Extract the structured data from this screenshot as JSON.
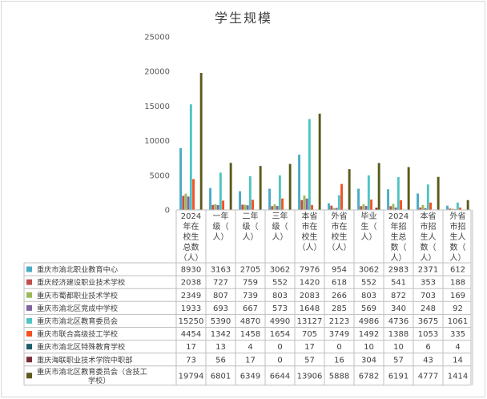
{
  "chart_data": {
    "type": "bar",
    "title": "学生规模",
    "categories": [
      "2024年在校生总数（人）",
      "一年级（人）",
      "二年级（人）",
      "三年级（人）",
      "本省市在校生（人）",
      "外省市在校生（人）",
      "毕业生（人）",
      "2024年招生总数（人）",
      "本省市招生人数（人）",
      "外省市招生人数（人）"
    ],
    "category_lines": [
      [
        "2024",
        "年在",
        "校生",
        "总数",
        "（人）"
      ],
      [
        "一年",
        "级（",
        "人）"
      ],
      [
        "二年",
        "级（",
        "人）"
      ],
      [
        "三年",
        "级（",
        "人）"
      ],
      [
        "本省",
        "市在",
        "校生",
        "（人）"
      ],
      [
        "外省",
        "市在",
        "校生",
        "（人）"
      ],
      [
        "毕业",
        "生（",
        "人）"
      ],
      [
        "2024",
        "年招",
        "生总",
        "数（",
        "人）"
      ],
      [
        "本省",
        "市招",
        "生人",
        "数（",
        "人）"
      ],
      [
        "外省",
        "市招",
        "生人",
        "数（",
        "人）"
      ]
    ],
    "ylim": [
      0,
      25000
    ],
    "yticks": [
      0,
      5000,
      10000,
      15000,
      20000,
      25000
    ],
    "grid": false,
    "legend": "data-table",
    "series": [
      {
        "name": "重庆市渝北职业教育中心",
        "color": "#4bacc6",
        "values": [
          8930,
          3163,
          2705,
          3062,
          7976,
          954,
          3062,
          2983,
          2371,
          612
        ]
      },
      {
        "name": "重庆经济建设职业技术学校",
        "color": "#c0504d",
        "values": [
          2038,
          727,
          759,
          552,
          1420,
          618,
          552,
          541,
          353,
          188
        ]
      },
      {
        "name": "重庆市蜀都职业技术学校",
        "color": "#9bbb59",
        "values": [
          2349,
          807,
          739,
          803,
          2083,
          266,
          803,
          872,
          703,
          169
        ]
      },
      {
        "name": "重庆市渝北区竞成中学校",
        "color": "#8064a2",
        "values": [
          1933,
          693,
          667,
          573,
          1648,
          285,
          569,
          340,
          248,
          92
        ]
      },
      {
        "name": "重庆市渝北区教育委员会",
        "color": "#4fc4c4",
        "values": [
          15250,
          5390,
          4870,
          4990,
          13127,
          2123,
          4986,
          4736,
          3675,
          1061
        ]
      },
      {
        "name": "重庆市联合高级技工学校",
        "color": "#f6511d",
        "values": [
          4454,
          1342,
          1458,
          1654,
          705,
          3749,
          1492,
          1388,
          1053,
          335
        ]
      },
      {
        "name": "重庆市渝北区特殊教育学校",
        "color": "#1f5c6b",
        "values": [
          17,
          13,
          4,
          0,
          17,
          0,
          10,
          10,
          6,
          4
        ]
      },
      {
        "name": "重庆海联职业技术学院中职部",
        "color": "#7b2d35",
        "values": [
          73,
          56,
          17,
          0,
          57,
          16,
          304,
          57,
          43,
          14
        ]
      },
      {
        "name": "重庆市渝北区教育委员会（含技工学校）",
        "color": "#5a5a1c",
        "values": [
          19794,
          6801,
          6349,
          6644,
          13906,
          5888,
          6782,
          6191,
          4777,
          1414
        ]
      }
    ]
  }
}
